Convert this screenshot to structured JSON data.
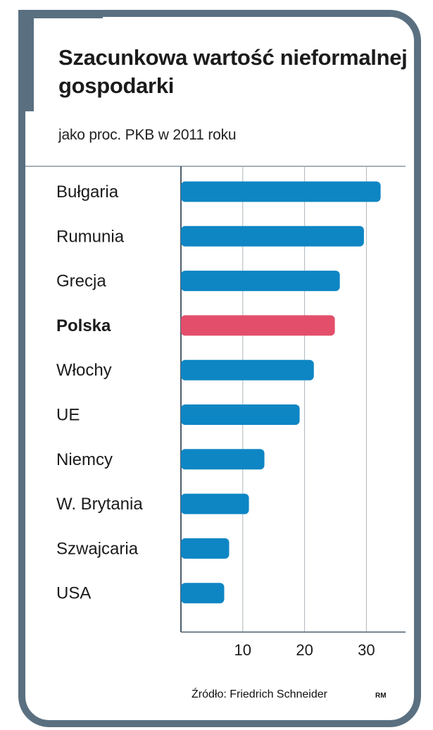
{
  "chart_data": {
    "type": "bar",
    "orientation": "horizontal",
    "title": "Szacunkowa wartość nieformalnej gospodarki",
    "subtitle": "jako proc. PKB w 2011 roku",
    "categories": [
      "Bułgaria",
      "Rumunia",
      "Grecja",
      "Polska",
      "Włochy",
      "UE",
      "Niemcy",
      "W. Brytania",
      "Szwajcaria",
      "USA"
    ],
    "values": [
      32.3,
      29.6,
      25.7,
      24.9,
      21.5,
      19.2,
      13.5,
      11.0,
      7.8,
      7.0
    ],
    "highlight": "Polska",
    "xlim": [
      0,
      35
    ],
    "xticks": [
      "10",
      "20",
      "30"
    ],
    "grid": true,
    "colors": {
      "bar": "#0e86c4",
      "highlight_bar": "#e34f6b",
      "frame": "#5a7081"
    }
  },
  "source": "Źródło: Friedrich Schneider",
  "credit": "RM"
}
